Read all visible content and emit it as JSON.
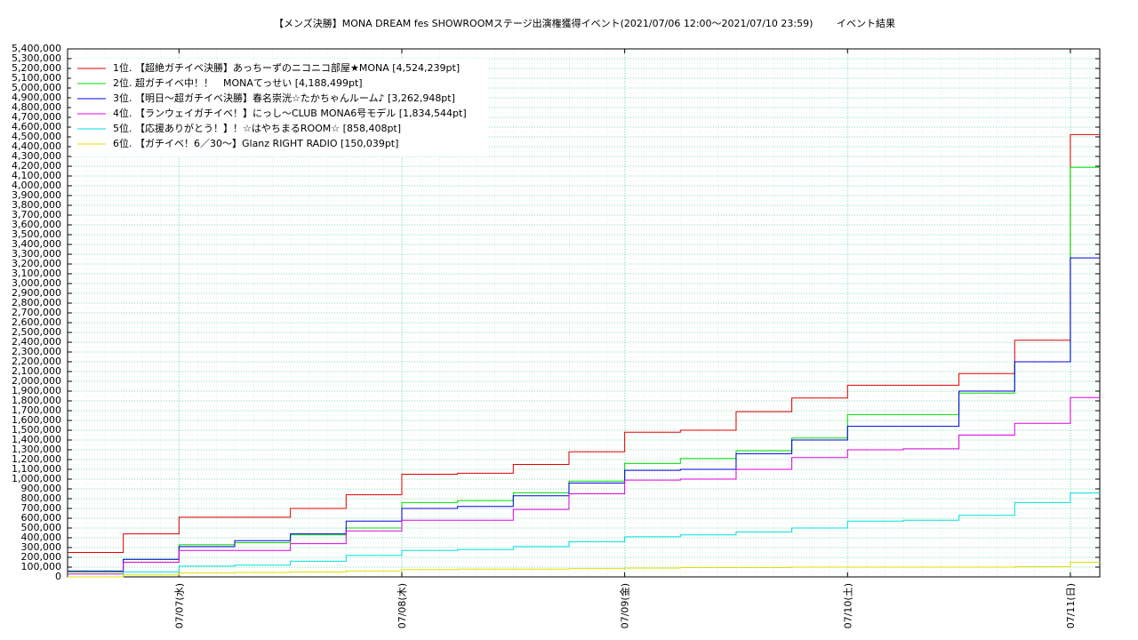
{
  "chart_data": {
    "type": "step-line",
    "title": "【メンズ決勝】MONA DREAM fes SHOWROOMステージ出演権獲得イベント(2021/07/06 12:00〜2021/07/10 23:59)",
    "subtitle": "イベント結果",
    "x": [
      "07/06 12:00",
      "07/06 18:00",
      "07/07 00:00",
      "07/07 06:00",
      "07/07 12:00",
      "07/07 18:00",
      "07/08 00:00",
      "07/08 06:00",
      "07/08 12:00",
      "07/08 18:00",
      "07/09 00:00",
      "07/09 06:00",
      "07/09 12:00",
      "07/09 18:00",
      "07/10 00:00",
      "07/10 06:00",
      "07/10 12:00",
      "07/10 18:00",
      "07/11 00:00"
    ],
    "xlim": [
      "07/06 12:00",
      "07/11 03:10"
    ],
    "xticks": [
      {
        "value": "07/07 00:00",
        "label": "07/07(水)"
      },
      {
        "value": "07/08 00:00",
        "label": "07/08(木)"
      },
      {
        "value": "07/09 00:00",
        "label": "07/09(金)"
      },
      {
        "value": "07/10 00:00",
        "label": "07/10(土)"
      },
      {
        "value": "07/11 00:00",
        "label": "07/11(日)"
      }
    ],
    "ylim": [
      0,
      5400000
    ],
    "yticks": [
      0,
      {
        "value": 100000,
        "label": "100,000"
      },
      {
        "value": 200000,
        "label": "200,000"
      },
      {
        "value": 300000,
        "label": "300,000"
      },
      {
        "value": 400000,
        "label": "400,000"
      },
      {
        "value": 500000,
        "label": "500,000"
      },
      {
        "value": 600000,
        "label": "600,000"
      },
      {
        "value": 700000,
        "label": "700,000"
      },
      {
        "value": 800000,
        "label": "800,000"
      },
      {
        "value": 900000,
        "label": "900,000"
      },
      {
        "value": 1000000,
        "label": "1,000,000"
      },
      {
        "value": 1100000,
        "label": "1,100,000"
      },
      {
        "value": 1200000,
        "label": "1,200,000"
      },
      {
        "value": 1300000,
        "label": "1,300,000"
      },
      {
        "value": 1400000,
        "label": "1,400,000"
      },
      {
        "value": 1500000,
        "label": "1,500,000"
      },
      {
        "value": 1600000,
        "label": "1,600,000"
      },
      {
        "value": 1700000,
        "label": "1,700,000"
      },
      {
        "value": 1800000,
        "label": "1,800,000"
      },
      {
        "value": 1900000,
        "label": "1,900,000"
      },
      {
        "value": 2000000,
        "label": "2,000,000"
      },
      {
        "value": 2100000,
        "label": "2,100,000"
      },
      {
        "value": 2200000,
        "label": "2,200,000"
      },
      {
        "value": 2300000,
        "label": "2,300,000"
      },
      {
        "value": 2400000,
        "label": "2,400,000"
      },
      {
        "value": 2500000,
        "label": "2,500,000"
      },
      {
        "value": 2600000,
        "label": "2,600,000"
      },
      {
        "value": 2700000,
        "label": "2,700,000"
      },
      {
        "value": 2800000,
        "label": "2,800,000"
      },
      {
        "value": 2900000,
        "label": "2,900,000"
      },
      {
        "value": 3000000,
        "label": "3,000,000"
      },
      {
        "value": 3100000,
        "label": "3,100,000"
      },
      {
        "value": 3200000,
        "label": "3,200,000"
      },
      {
        "value": 3300000,
        "label": "3,300,000"
      },
      {
        "value": 3400000,
        "label": "3,400,000"
      },
      {
        "value": 3500000,
        "label": "3,500,000"
      },
      {
        "value": 3600000,
        "label": "3,600,000"
      },
      {
        "value": 3700000,
        "label": "3,700,000"
      },
      {
        "value": 3800000,
        "label": "3,800,000"
      },
      {
        "value": 3900000,
        "label": "3,900,000"
      },
      {
        "value": 4000000,
        "label": "4,000,000"
      },
      {
        "value": 4100000,
        "label": "4,100,000"
      },
      {
        "value": 4200000,
        "label": "4,200,000"
      },
      {
        "value": 4300000,
        "label": "4,300,000"
      },
      {
        "value": 4400000,
        "label": "4,400,000"
      },
      {
        "value": 4500000,
        "label": "4,500,000"
      },
      {
        "value": 4600000,
        "label": "4,600,000"
      },
      {
        "value": 4700000,
        "label": "4,700,000"
      },
      {
        "value": 4800000,
        "label": "4,800,000"
      },
      {
        "value": 4900000,
        "label": "4,900,000"
      },
      {
        "value": 5000000,
        "label": "5,000,000"
      },
      {
        "value": 5100000,
        "label": "5,100,000"
      },
      {
        "value": 5200000,
        "label": "5,200,000"
      },
      {
        "value": 5300000,
        "label": "5,300,000"
      },
      {
        "value": 5400000,
        "label": "5,400,000"
      }
    ],
    "grid": true,
    "series": [
      {
        "name": "1位. 【超絶ガチイベ決勝】あっちーずのニコニコ部屋★MONA [4,524,239pt]",
        "color": "#e00000",
        "values": [
          250000,
          440000,
          610000,
          610000,
          700000,
          840000,
          1050000,
          1060000,
          1150000,
          1280000,
          1480000,
          1500000,
          1690000,
          1830000,
          1960000,
          1960000,
          2080000,
          2420000,
          4524239
        ]
      },
      {
        "name": "2位. 超ガチイベ中！！　MONAてっせい [4,188,499pt]",
        "color": "#00e000",
        "values": [
          50000,
          180000,
          330000,
          350000,
          430000,
          500000,
          760000,
          780000,
          860000,
          980000,
          1160000,
          1210000,
          1290000,
          1420000,
          1660000,
          1660000,
          1880000,
          2200000,
          4188499
        ]
      },
      {
        "name": "3位. 【明日〜超ガチイベ決勝】春名崇洸☆たかちゃんルーム♪ [3,262,948pt]",
        "color": "#0000e0",
        "values": [
          60000,
          180000,
          310000,
          370000,
          440000,
          570000,
          700000,
          720000,
          830000,
          960000,
          1090000,
          1100000,
          1260000,
          1400000,
          1540000,
          1540000,
          1900000,
          2200000,
          3262948
        ]
      },
      {
        "name": "4位. 【ランウェイガチイベ！】にっし〜CLUB MONA6号モデル [1,834,544pt]",
        "color": "#e000e0",
        "values": [
          30000,
          150000,
          270000,
          270000,
          340000,
          470000,
          580000,
          580000,
          690000,
          850000,
          990000,
          1000000,
          1100000,
          1220000,
          1300000,
          1310000,
          1450000,
          1570000,
          1834544
        ]
      },
      {
        "name": "5位. 【応援ありがとう！】！☆はやちまるROOM☆ [858,408pt]",
        "color": "#00e0e0",
        "values": [
          0,
          50000,
          110000,
          120000,
          160000,
          220000,
          270000,
          280000,
          310000,
          360000,
          410000,
          430000,
          460000,
          500000,
          570000,
          580000,
          630000,
          760000,
          858408
        ]
      },
      {
        "name": "6位. 【ガチイベ！6／30〜】Glanz RIGHT RADIO [150,039pt]",
        "color": "#e0e000",
        "values": [
          0,
          20000,
          40000,
          45000,
          50000,
          60000,
          75000,
          80000,
          80000,
          85000,
          90000,
          95000,
          95000,
          100000,
          100000,
          100000,
          100000,
          105000,
          150039
        ]
      }
    ]
  }
}
